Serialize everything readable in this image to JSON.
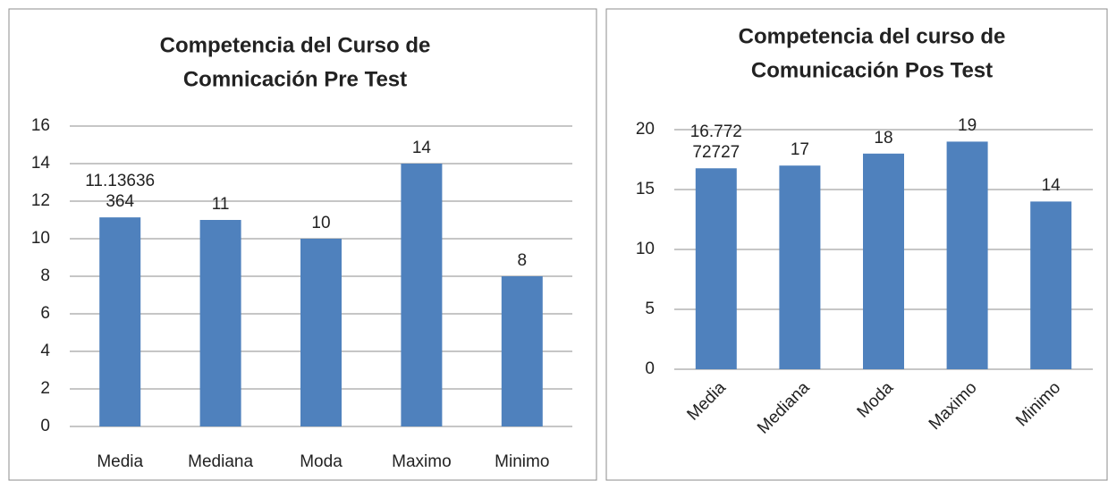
{
  "chart_data": [
    {
      "type": "bar",
      "title": [
        "Competencia del Curso de",
        "Comnicación  Pre Test"
      ],
      "categories": [
        "Media",
        "Mediana",
        "Moda",
        "Maximo",
        "Minimo"
      ],
      "values": [
        11.13636364,
        11,
        10,
        14,
        8
      ],
      "value_labels": [
        "11.13636364",
        "11",
        "10",
        "14",
        "8"
      ],
      "color": "#4f81bd",
      "ylim": [
        0,
        16
      ],
      "yticks": [
        0,
        2,
        4,
        6,
        8,
        10,
        12,
        14,
        16
      ],
      "grid": true
    },
    {
      "type": "bar",
      "title": [
        "Competencia del curso de",
        "Comunicación  Pos Test"
      ],
      "categories": [
        "Media",
        "Mediana",
        "Moda",
        "Maximo",
        "Minimo"
      ],
      "values": [
        16.77272727,
        17,
        18,
        19,
        14
      ],
      "value_labels": [
        "16.77272727",
        "17",
        "18",
        "19",
        "14"
      ],
      "color": "#4f81bd",
      "ylim": [
        0,
        20
      ],
      "yticks": [
        0,
        5,
        10,
        15,
        20
      ],
      "grid": true
    }
  ]
}
